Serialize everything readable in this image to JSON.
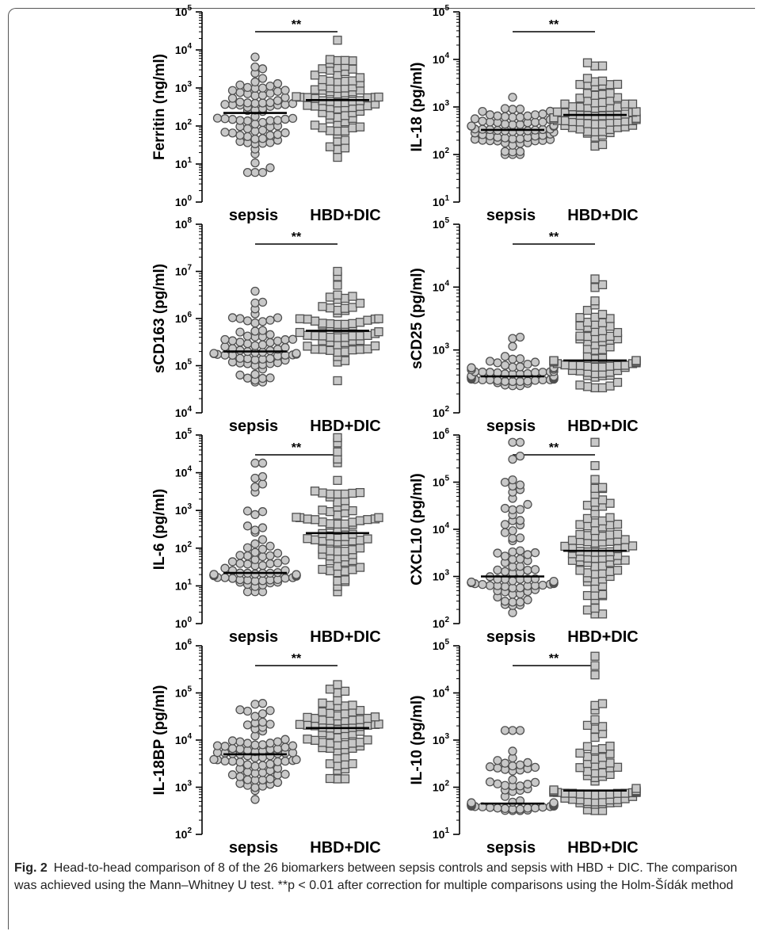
{
  "figure": {
    "caption_label": "Fig. 2",
    "caption_text": "Head-to-head comparison of 8 of the 26 biomarkers between sepsis controls and sepsis with HBD + DIC. The comparison was achieved using the Mann–Whitney U test. **p < 0.01 after correction for multiple comparisons using the Holm-Šídák method"
  },
  "colors": {
    "marker_fill": "#c8c8c8",
    "marker_stroke": "#505050",
    "axis": "#000000"
  },
  "chart_data": [
    {
      "type": "scatter",
      "ylabel": "Ferritin (ng/ml)",
      "y_scale": "log",
      "ylim_exp": [
        0,
        5
      ],
      "y_ticks": [
        "10^0",
        "10^1",
        "10^2",
        "10^3",
        "10^4",
        "10^5"
      ],
      "categories": [
        "sepsis",
        "HBD+DIC"
      ],
      "significance": "**",
      "series": [
        {
          "name": "sepsis",
          "marker": "circle",
          "median": 220,
          "min": 6,
          "max": 6500,
          "n": 80
        },
        {
          "name": "HBD+DIC",
          "marker": "square",
          "median": 480,
          "min": 15,
          "max": 18000,
          "n": 80
        }
      ]
    },
    {
      "type": "scatter",
      "ylabel": "IL-18 (pg/ml)",
      "y_scale": "log",
      "ylim_exp": [
        1,
        5
      ],
      "y_ticks": [
        "10^1",
        "10^2",
        "10^3",
        "10^4",
        "10^5"
      ],
      "categories": [
        "sepsis",
        "HBD+DIC"
      ],
      "significance": "**",
      "series": [
        {
          "name": "sepsis",
          "marker": "circle",
          "median": 330,
          "min": 100,
          "max": 1600,
          "n": 70
        },
        {
          "name": "HBD+DIC",
          "marker": "square",
          "median": 680,
          "min": 150,
          "max": 8500,
          "n": 75
        }
      ]
    },
    {
      "type": "scatter",
      "ylabel": "sCD163 (pg/ml)",
      "y_scale": "log",
      "ylim_exp": [
        4,
        8
      ],
      "y_ticks": [
        "10^4",
        "10^5",
        "10^6",
        "10^7",
        "10^8"
      ],
      "categories": [
        "sepsis",
        "HBD+DIC"
      ],
      "significance": "**",
      "series": [
        {
          "name": "sepsis",
          "marker": "circle",
          "median": 200000,
          "min": 45000,
          "max": 3800000,
          "n": 70
        },
        {
          "name": "HBD+DIC",
          "marker": "square",
          "median": 550000,
          "min": 48000,
          "max": 10000000,
          "n": 65
        }
      ]
    },
    {
      "type": "scatter",
      "ylabel": "sCD25 (pg/ml)",
      "y_scale": "log",
      "ylim_exp": [
        2,
        5
      ],
      "y_ticks": [
        "10^2",
        "10^3",
        "10^4",
        "10^5"
      ],
      "categories": [
        "sepsis",
        "HBD+DIC"
      ],
      "significance": "**",
      "series": [
        {
          "name": "sepsis",
          "marker": "circle",
          "median": 380,
          "min": 270,
          "max": 1600,
          "n": 65
        },
        {
          "name": "HBD+DIC",
          "marker": "square",
          "median": 680,
          "min": 250,
          "max": 13500,
          "n": 75
        }
      ]
    },
    {
      "type": "scatter",
      "ylabel": "IL-6 (pg/ml)",
      "y_scale": "log",
      "ylim_exp": [
        0,
        5
      ],
      "y_ticks": [
        "10^0",
        "10^1",
        "10^2",
        "10^3",
        "10^4",
        "10^5"
      ],
      "categories": [
        "sepsis",
        "HBD+DIC"
      ],
      "significance": "**",
      "series": [
        {
          "name": "sepsis",
          "marker": "circle",
          "median": 22,
          "min": 7,
          "max": 18000,
          "n": 75
        },
        {
          "name": "HBD+DIC",
          "marker": "square",
          "median": 250,
          "min": 7,
          "max": 85000,
          "n": 80
        }
      ]
    },
    {
      "type": "scatter",
      "ylabel": "CXCL10 (pg/ml)",
      "y_scale": "log",
      "ylim_exp": [
        2,
        6
      ],
      "y_ticks": [
        "10^2",
        "10^3",
        "10^4",
        "10^5",
        "10^6"
      ],
      "categories": [
        "sepsis",
        "HBD+DIC"
      ],
      "significance": "**",
      "series": [
        {
          "name": "sepsis",
          "marker": "circle",
          "median": 1000,
          "min": 170,
          "max": 700000,
          "n": 85
        },
        {
          "name": "HBD+DIC",
          "marker": "square",
          "median": 3500,
          "min": 160,
          "max": 700000,
          "n": 85
        }
      ]
    },
    {
      "type": "scatter",
      "ylabel": "IL-18BP (pg/ml)",
      "y_scale": "log",
      "ylim_exp": [
        2,
        6
      ],
      "y_ticks": [
        "10^2",
        "10^3",
        "10^4",
        "10^5",
        "10^6"
      ],
      "categories": [
        "sepsis",
        "HBD+DIC"
      ],
      "significance": "**",
      "series": [
        {
          "name": "sepsis",
          "marker": "circle",
          "median": 5000,
          "min": 550,
          "max": 60000,
          "n": 80
        },
        {
          "name": "HBD+DIC",
          "marker": "square",
          "median": 18000,
          "min": 1500,
          "max": 150000,
          "n": 70
        }
      ]
    },
    {
      "type": "scatter",
      "ylabel": "IL-10 (pg/ml)",
      "y_scale": "log",
      "ylim_exp": [
        1,
        5
      ],
      "y_ticks": [
        "10^1",
        "10^2",
        "10^3",
        "10^4",
        "10^5"
      ],
      "categories": [
        "sepsis",
        "HBD+DIC"
      ],
      "significance": "**",
      "series": [
        {
          "name": "sepsis",
          "marker": "circle",
          "median": 45,
          "min": 32,
          "max": 1600,
          "n": 70
        },
        {
          "name": "HBD+DIC",
          "marker": "square",
          "median": 85,
          "min": 32,
          "max": 60000,
          "n": 75
        }
      ]
    }
  ]
}
